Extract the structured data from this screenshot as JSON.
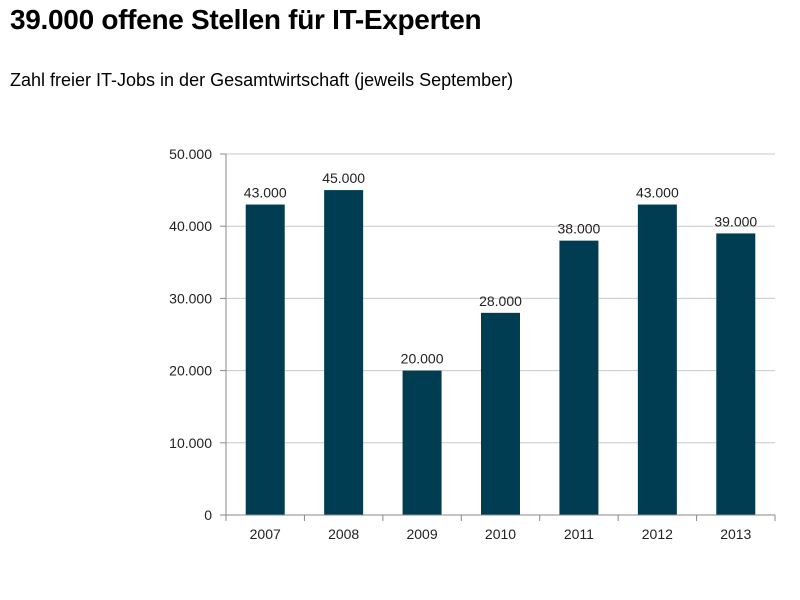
{
  "page": {
    "title": "39.000 offene Stellen für IT-Experten",
    "subtitle": "Zahl freier IT-Jobs in der Gesamtwirtschaft (jeweils September)"
  },
  "chart_data": {
    "type": "bar",
    "title": "39.000 offene Stellen für IT-Experten",
    "subtitle": "Zahl freier IT-Jobs in der Gesamtwirtschaft (jeweils September)",
    "xlabel": "",
    "ylabel": "",
    "categories": [
      "2007",
      "2008",
      "2009",
      "2010",
      "2011",
      "2012",
      "2013"
    ],
    "values": [
      43000,
      45000,
      20000,
      28000,
      38000,
      43000,
      39000
    ],
    "data_labels": [
      "43.000",
      "45.000",
      "20.000",
      "28.000",
      "38.000",
      "43.000",
      "39.000"
    ],
    "ylim": [
      0,
      50000
    ],
    "yticks": [
      0,
      10000,
      20000,
      30000,
      40000,
      50000
    ],
    "ytick_labels": [
      "0",
      "10.000",
      "20.000",
      "30.000",
      "40.000",
      "50.000"
    ],
    "grid": true,
    "legend": "none",
    "bar_color": "#003d52",
    "grid_color": "#c8c8c8"
  }
}
